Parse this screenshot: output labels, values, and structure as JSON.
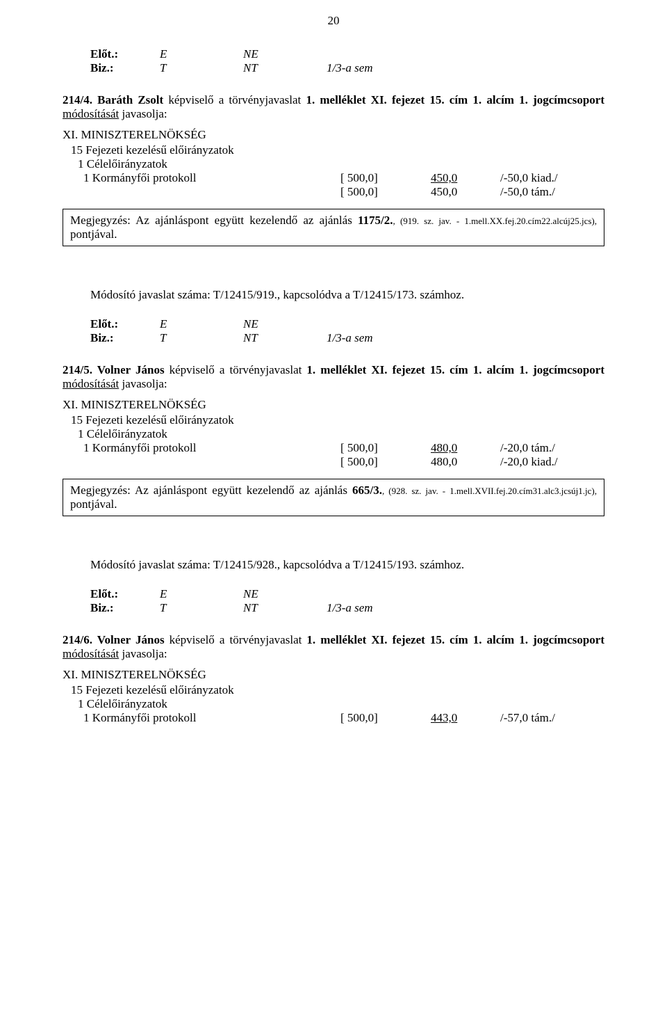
{
  "page_number": "20",
  "vote_block": {
    "row1": {
      "label": "Előt.:",
      "c1": "E",
      "c2": "NE",
      "c3": ""
    },
    "row2": {
      "label": "Biz.:",
      "c1": "T",
      "c2": "NT",
      "c3": "1/3-a sem"
    }
  },
  "sections": [
    {
      "proposal_lead": "214/4. Baráth Zsolt ",
      "proposal_body1": "képviselő a törvényjavaslat ",
      "proposal_bold2": "1. melléklet XI. fejezet 15. cím 1. alcím 1. jogcímcsoport ",
      "proposal_under": "módosítását",
      "proposal_tail": " javasolja:",
      "ministry": "XI. MINISZTERELNÖKSÉG",
      "line1": "15 Fejezeti kezelésű előirányzatok",
      "line2": "1 Célelőirányzatok",
      "alloc": [
        {
          "label": "1 Kormányfői protokoll",
          "v1": "[ 500,0]",
          "v2": "450,0",
          "v3": "/-50,0 kiad./",
          "v2_underline": true
        },
        {
          "label": "",
          "v1": "[ 500,0]",
          "v2": "450,0",
          "v3": "/-50,0 tám./",
          "v2_underline": false
        }
      ],
      "note_main": "Megjegyzés: Az ajánláspont együtt kezelendő az ajánlás ",
      "note_bold": "1175/2.",
      "note_small": ", (919. sz. jav. - 1.mell.XX.fej.20.cím22.alcúj25.jcs), ",
      "note_tail": "pontjával.",
      "mod_line": "Módosító javaslat száma: T/12415/919., kapcsolódva a T/12415/173. számhoz."
    },
    {
      "proposal_lead": "214/5. Volner János ",
      "proposal_body1": "képviselő a törvényjavaslat ",
      "proposal_bold2": "1. melléklet XI. fejezet 15. cím 1. alcím 1. jogcímcsoport ",
      "proposal_under": "módosítását",
      "proposal_tail": " javasolja:",
      "ministry": "XI. MINISZTERELNÖKSÉG",
      "line1": "15 Fejezeti kezelésű előirányzatok",
      "line2": "1 Célelőirányzatok",
      "alloc": [
        {
          "label": "1 Kormányfői protokoll",
          "v1": "[ 500,0]",
          "v2": "480,0",
          "v3": "/-20,0 tám./",
          "v2_underline": true
        },
        {
          "label": "",
          "v1": "[ 500,0]",
          "v2": "480,0",
          "v3": "/-20,0 kiad./",
          "v2_underline": false
        }
      ],
      "note_main_justify": "Megjegyzés: Az ajánláspont együtt kezelendő az ajánlás ",
      "note_bold": "665/3.",
      "note_small": ", (928. sz. jav. - 1.mell.XVII.fej.20.cím31.alc3.jcsúj1.jc), ",
      "note_tail": "pontjával.",
      "mod_line": "Módosító javaslat száma: T/12415/928., kapcsolódva a T/12415/193. számhoz."
    },
    {
      "proposal_lead": "214/6. Volner János ",
      "proposal_body1": "képviselő a törvényjavaslat ",
      "proposal_bold2": "1. melléklet XI. fejezet 15. cím 1. alcím 1. jogcímcsoport ",
      "proposal_under": "módosítását",
      "proposal_tail": " javasolja:",
      "ministry": "XI. MINISZTERELNÖKSÉG",
      "line1": "15 Fejezeti kezelésű előirányzatok",
      "line2": "1 Célelőirányzatok",
      "alloc": [
        {
          "label": "1 Kormányfői protokoll",
          "v1": "[ 500,0]",
          "v2": "443,0",
          "v3": "/-57,0 tám./",
          "v2_underline": true
        }
      ]
    }
  ]
}
